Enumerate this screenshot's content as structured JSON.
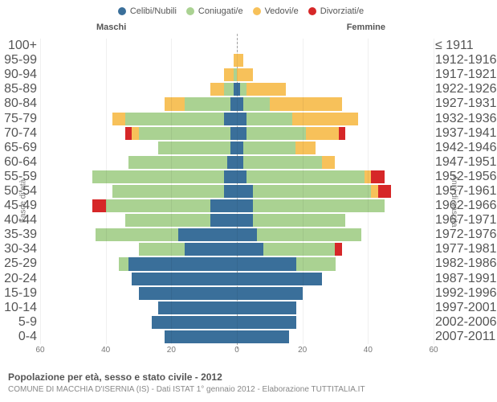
{
  "type": "population-pyramid",
  "colors": {
    "single": "#3a6f9a",
    "married": "#aad292",
    "widowed": "#f7c15a",
    "divorced": "#d62728",
    "grid": "#e8e8e8",
    "text": "#777777",
    "bg": "#ffffff"
  },
  "legend": [
    {
      "key": "single",
      "label": "Celibi/Nubili"
    },
    {
      "key": "married",
      "label": "Coniugati/e"
    },
    {
      "key": "widowed",
      "label": "Vedovi/e"
    },
    {
      "key": "divorced",
      "label": "Divorziati/e"
    }
  ],
  "gender": {
    "male": "Maschi",
    "female": "Femmine"
  },
  "axis": {
    "y_left_title": "Fasce di età",
    "y_right_title": "Anni di nascita",
    "x_max": 60,
    "x_ticks": [
      60,
      40,
      20,
      0,
      20,
      40,
      60
    ]
  },
  "rows": [
    {
      "age": "0-4",
      "birth": "2007-2011",
      "m": {
        "single": 22,
        "married": 0,
        "widowed": 0,
        "divorced": 0
      },
      "f": {
        "single": 16,
        "married": 0,
        "widowed": 0,
        "divorced": 0
      }
    },
    {
      "age": "5-9",
      "birth": "2002-2006",
      "m": {
        "single": 26,
        "married": 0,
        "widowed": 0,
        "divorced": 0
      },
      "f": {
        "single": 18,
        "married": 0,
        "widowed": 0,
        "divorced": 0
      }
    },
    {
      "age": "10-14",
      "birth": "1997-2001",
      "m": {
        "single": 24,
        "married": 0,
        "widowed": 0,
        "divorced": 0
      },
      "f": {
        "single": 18,
        "married": 0,
        "widowed": 0,
        "divorced": 0
      }
    },
    {
      "age": "15-19",
      "birth": "1992-1996",
      "m": {
        "single": 30,
        "married": 0,
        "widowed": 0,
        "divorced": 0
      },
      "f": {
        "single": 20,
        "married": 0,
        "widowed": 0,
        "divorced": 0
      }
    },
    {
      "age": "20-24",
      "birth": "1987-1991",
      "m": {
        "single": 32,
        "married": 0,
        "widowed": 0,
        "divorced": 0
      },
      "f": {
        "single": 26,
        "married": 0,
        "widowed": 0,
        "divorced": 0
      }
    },
    {
      "age": "25-29",
      "birth": "1982-1986",
      "m": {
        "single": 33,
        "married": 3,
        "widowed": 0,
        "divorced": 0
      },
      "f": {
        "single": 18,
        "married": 12,
        "widowed": 0,
        "divorced": 0
      }
    },
    {
      "age": "30-34",
      "birth": "1977-1981",
      "m": {
        "single": 16,
        "married": 14,
        "widowed": 0,
        "divorced": 0
      },
      "f": {
        "single": 8,
        "married": 22,
        "widowed": 0,
        "divorced": 2
      }
    },
    {
      "age": "35-39",
      "birth": "1972-1976",
      "m": {
        "single": 18,
        "married": 25,
        "widowed": 0,
        "divorced": 0
      },
      "f": {
        "single": 6,
        "married": 32,
        "widowed": 0,
        "divorced": 0
      }
    },
    {
      "age": "40-44",
      "birth": "1967-1971",
      "m": {
        "single": 8,
        "married": 26,
        "widowed": 0,
        "divorced": 0
      },
      "f": {
        "single": 5,
        "married": 28,
        "widowed": 0,
        "divorced": 0
      }
    },
    {
      "age": "45-49",
      "birth": "1962-1966",
      "m": {
        "single": 8,
        "married": 32,
        "widowed": 0,
        "divorced": 4
      },
      "f": {
        "single": 5,
        "married": 40,
        "widowed": 0,
        "divorced": 0
      }
    },
    {
      "age": "50-54",
      "birth": "1957-1961",
      "m": {
        "single": 4,
        "married": 34,
        "widowed": 0,
        "divorced": 0
      },
      "f": {
        "single": 5,
        "married": 36,
        "widowed": 2,
        "divorced": 4
      }
    },
    {
      "age": "55-59",
      "birth": "1952-1956",
      "m": {
        "single": 4,
        "married": 40,
        "widowed": 0,
        "divorced": 0
      },
      "f": {
        "single": 3,
        "married": 36,
        "widowed": 2,
        "divorced": 4
      }
    },
    {
      "age": "60-64",
      "birth": "1947-1951",
      "m": {
        "single": 3,
        "married": 30,
        "widowed": 0,
        "divorced": 0
      },
      "f": {
        "single": 2,
        "married": 24,
        "widowed": 4,
        "divorced": 0
      }
    },
    {
      "age": "65-69",
      "birth": "1942-1946",
      "m": {
        "single": 2,
        "married": 22,
        "widowed": 0,
        "divorced": 0
      },
      "f": {
        "single": 2,
        "married": 16,
        "widowed": 6,
        "divorced": 0
      }
    },
    {
      "age": "70-74",
      "birth": "1937-1941",
      "m": {
        "single": 2,
        "married": 28,
        "widowed": 2,
        "divorced": 2
      },
      "f": {
        "single": 3,
        "married": 18,
        "widowed": 10,
        "divorced": 2
      }
    },
    {
      "age": "75-79",
      "birth": "1932-1936",
      "m": {
        "single": 4,
        "married": 30,
        "widowed": 4,
        "divorced": 0
      },
      "f": {
        "single": 3,
        "married": 14,
        "widowed": 20,
        "divorced": 0
      }
    },
    {
      "age": "80-84",
      "birth": "1927-1931",
      "m": {
        "single": 2,
        "married": 14,
        "widowed": 6,
        "divorced": 0
      },
      "f": {
        "single": 2,
        "married": 8,
        "widowed": 22,
        "divorced": 0
      }
    },
    {
      "age": "85-89",
      "birth": "1922-1926",
      "m": {
        "single": 1,
        "married": 3,
        "widowed": 4,
        "divorced": 0
      },
      "f": {
        "single": 1,
        "married": 2,
        "widowed": 12,
        "divorced": 0
      }
    },
    {
      "age": "90-94",
      "birth": "1917-1921",
      "m": {
        "single": 0,
        "married": 1,
        "widowed": 3,
        "divorced": 0
      },
      "f": {
        "single": 0,
        "married": 0,
        "widowed": 5,
        "divorced": 0
      }
    },
    {
      "age": "95-99",
      "birth": "1912-1916",
      "m": {
        "single": 0,
        "married": 0,
        "widowed": 1,
        "divorced": 0
      },
      "f": {
        "single": 0,
        "married": 0,
        "widowed": 2,
        "divorced": 0
      }
    },
    {
      "age": "100+",
      "birth": "≤ 1911",
      "m": {
        "single": 0,
        "married": 0,
        "widowed": 0,
        "divorced": 0
      },
      "f": {
        "single": 0,
        "married": 0,
        "widowed": 0,
        "divorced": 0
      }
    }
  ],
  "footer": {
    "title": "Popolazione per età, sesso e stato civile - 2012",
    "subtitle": "COMUNE DI MACCHIA D'ISERNIA (IS) - Dati ISTAT 1° gennaio 2012 - Elaborazione TUTTITALIA.IT"
  }
}
